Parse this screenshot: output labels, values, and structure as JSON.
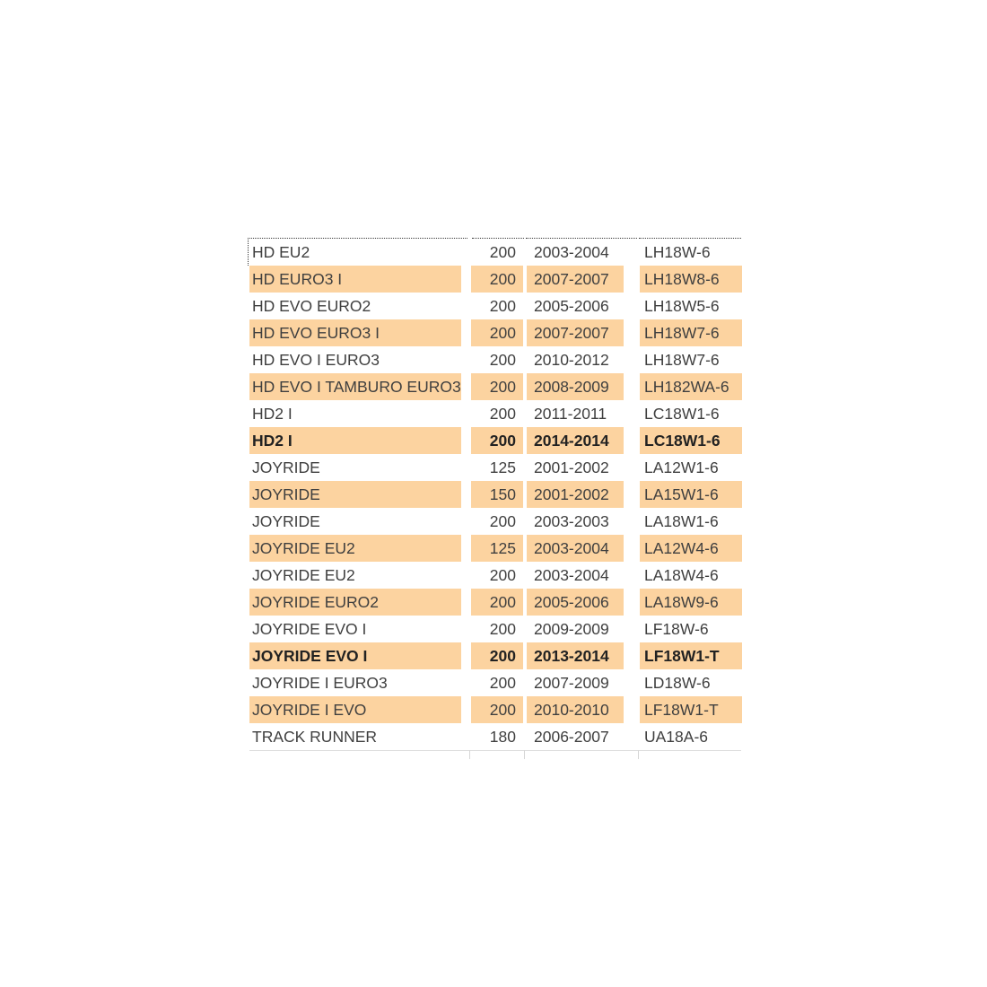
{
  "colors": {
    "highlight": "#FCD3A0",
    "text": "#3F3F3F",
    "bold_text": "#222222",
    "marquee_border": "#3A3A3A",
    "background": "#FFFFFF"
  },
  "table": {
    "rows": [
      {
        "model": "HD EU2",
        "displacement": "200",
        "years": "2003-2004",
        "code": "LH18W-6",
        "highlighted": false,
        "bold": false
      },
      {
        "model": "HD EURO3 I",
        "displacement": "200",
        "years": "2007-2007",
        "code": "LH18W8-6",
        "highlighted": true,
        "bold": false
      },
      {
        "model": "HD EVO EURO2",
        "displacement": "200",
        "years": "2005-2006",
        "code": "LH18W5-6",
        "highlighted": false,
        "bold": false
      },
      {
        "model": "HD EVO EURO3 I",
        "displacement": "200",
        "years": "2007-2007",
        "code": "LH18W7-6",
        "highlighted": true,
        "bold": false
      },
      {
        "model": "HD EVO I EURO3",
        "displacement": "200",
        "years": "2010-2012",
        "code": "LH18W7-6",
        "highlighted": false,
        "bold": false
      },
      {
        "model": "HD EVO I TAMBURO EURO3",
        "displacement": "200",
        "years": "2008-2009",
        "code": "LH182WA-6",
        "highlighted": true,
        "bold": false
      },
      {
        "model": "HD2 I",
        "displacement": "200",
        "years": "2011-2011",
        "code": "LC18W1-6",
        "highlighted": false,
        "bold": false
      },
      {
        "model": "HD2 I",
        "displacement": "200",
        "years": "2014-2014",
        "code": "LC18W1-6",
        "highlighted": true,
        "bold": true
      },
      {
        "model": "JOYRIDE",
        "displacement": "125",
        "years": "2001-2002",
        "code": "LA12W1-6",
        "highlighted": false,
        "bold": false
      },
      {
        "model": "JOYRIDE",
        "displacement": "150",
        "years": "2001-2002",
        "code": "LA15W1-6",
        "highlighted": true,
        "bold": false
      },
      {
        "model": "JOYRIDE",
        "displacement": "200",
        "years": "2003-2003",
        "code": "LA18W1-6",
        "highlighted": false,
        "bold": false
      },
      {
        "model": "JOYRIDE EU2",
        "displacement": "125",
        "years": "2003-2004",
        "code": "LA12W4-6",
        "highlighted": true,
        "bold": false
      },
      {
        "model": "JOYRIDE EU2",
        "displacement": "200",
        "years": "2003-2004",
        "code": "LA18W4-6",
        "highlighted": false,
        "bold": false
      },
      {
        "model": "JOYRIDE EURO2",
        "displacement": "200",
        "years": "2005-2006",
        "code": "LA18W9-6",
        "highlighted": true,
        "bold": false
      },
      {
        "model": "JOYRIDE EVO I",
        "displacement": "200",
        "years": "2009-2009",
        "code": "LF18W-6",
        "highlighted": false,
        "bold": false
      },
      {
        "model": "JOYRIDE EVO I",
        "displacement": "200",
        "years": "2013-2014",
        "code": "LF18W1-T",
        "highlighted": true,
        "bold": true
      },
      {
        "model": "JOYRIDE I EURO3",
        "displacement": "200",
        "years": "2007-2009",
        "code": "LD18W-6",
        "highlighted": false,
        "bold": false
      },
      {
        "model": "JOYRIDE I EVO",
        "displacement": "200",
        "years": "2010-2010",
        "code": "LF18W1-T",
        "highlighted": true,
        "bold": false
      },
      {
        "model": "TRACK RUNNER",
        "displacement": "180",
        "years": "2006-2007",
        "code": "UA18A-6",
        "highlighted": false,
        "bold": false
      }
    ]
  }
}
